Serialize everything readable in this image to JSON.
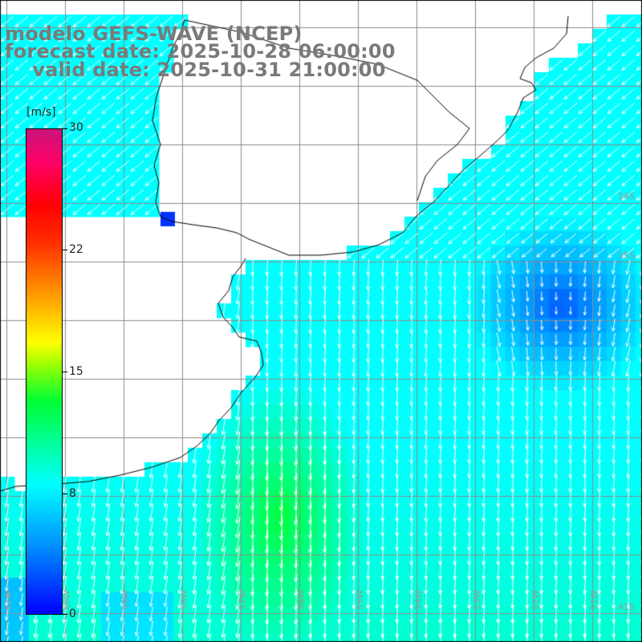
{
  "header": {
    "line1": "modelo GEFS-WAVE (NCEP)",
    "line2": "forecast date: 2025-10-28 06:00:00",
    "line3": "    valid date: 2025-10-31 21:00:00"
  },
  "legend": {
    "unit": "[m/s]",
    "min": 0,
    "max": 30,
    "ticks": [
      {
        "label": "30",
        "value": 30
      },
      {
        "label": "22",
        "value": 22.5
      },
      {
        "label": "15",
        "value": 15
      },
      {
        "label": "8",
        "value": 7.5
      },
      {
        "label": "0",
        "value": 0
      }
    ],
    "colors": [
      "#0000ff",
      "#0090ff",
      "#00ffff",
      "#00ff33",
      "#a8ff00",
      "#ffff00",
      "#ff9900",
      "#ff3300",
      "#ff0000",
      "#ff0066",
      "#c8147a"
    ]
  },
  "map": {
    "lat_labels": [
      "34S",
      "35S",
      "41S"
    ],
    "lon_labels": [
      "61W",
      "60W",
      "59W",
      "58W",
      "57W",
      "56W",
      "55W",
      "54W",
      "53W",
      "52W",
      "51W"
    ],
    "background": "#ffffff",
    "coastline_color": "#000000",
    "grid_color": "#999999",
    "arrow_color": "#ffffff"
  }
}
